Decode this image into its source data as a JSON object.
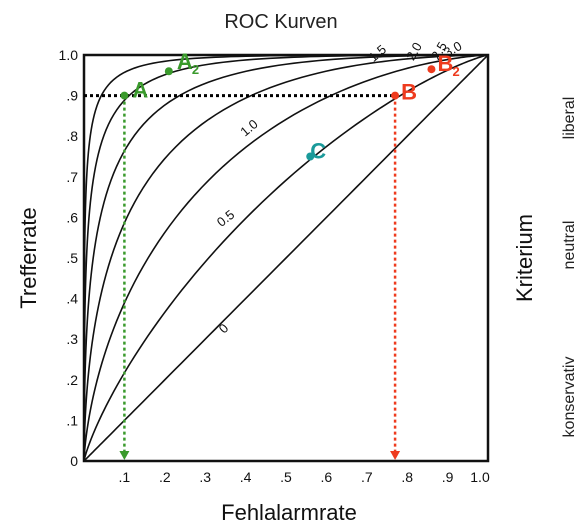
{
  "chart_data": {
    "type": "line",
    "title": "ROC Kurven",
    "xlabel": "Fehlalarmrate",
    "ylabel": "Trefferrate",
    "right_label": "Kriterium",
    "criterion_levels": [
      "liberal",
      "neutral",
      "konservativ"
    ],
    "xlim": [
      0,
      1
    ],
    "ylim": [
      0,
      1
    ],
    "x_ticks": [
      ".1",
      ".2",
      ".3",
      ".4",
      ".5",
      ".6",
      ".7",
      ".8",
      ".9",
      "1.0"
    ],
    "y_ticks": [
      "0",
      ".1",
      ".2",
      ".3",
      ".4",
      ".5",
      ".6",
      ".7",
      ".8",
      ".9",
      "1.0"
    ],
    "curves": [
      {
        "label": "0",
        "d": 0.0
      },
      {
        "label": "0.5",
        "d": 0.5
      },
      {
        "label": "1.0",
        "d": 1.0
      },
      {
        "label": "1.5",
        "d": 1.5
      },
      {
        "label": "2.0",
        "d": 2.0
      },
      {
        "label": "2.5",
        "d": 2.5
      },
      {
        "label": "3.0",
        "d": 3.0
      }
    ],
    "points": [
      {
        "label": "A",
        "sub": "",
        "x": 0.1,
        "y": 0.9,
        "color": "#3a9a2c"
      },
      {
        "label": "A",
        "sub": "2",
        "x": 0.21,
        "y": 0.96,
        "color": "#3a9a2c"
      },
      {
        "label": "B",
        "sub": "",
        "x": 0.77,
        "y": 0.9,
        "color": "#ee3b1e"
      },
      {
        "label": "B",
        "sub": "2",
        "x": 0.86,
        "y": 0.965,
        "color": "#ee3b1e"
      },
      {
        "label": "C",
        "sub": "",
        "x": 0.56,
        "y": 0.75,
        "color": "#1a9a9a"
      }
    ],
    "guides": [
      {
        "type": "horizontal",
        "y": 0.9,
        "x_from": 0,
        "x_to": 0.77,
        "color": "#000000"
      },
      {
        "type": "vertical",
        "x": 0.1,
        "y_from": 0.9,
        "y_to": 0,
        "color": "#3a9a2c"
      },
      {
        "type": "vertical",
        "x": 0.77,
        "y_from": 0.9,
        "y_to": 0,
        "color": "#ee3b1e"
      }
    ]
  }
}
